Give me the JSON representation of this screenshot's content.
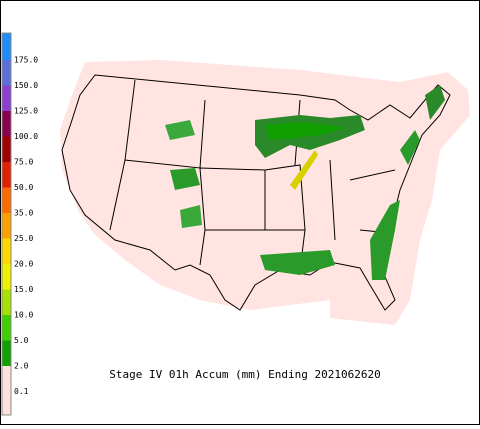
{
  "title": "Stage IV 01h Accum (mm) Ending 2021062620",
  "legend": [
    {
      "label": "175.0",
      "color": "#1e8cff"
    },
    {
      "label": "150.0",
      "color": "#5a6fd8"
    },
    {
      "label": "125.0",
      "color": "#8a3fd0"
    },
    {
      "label": "100.0",
      "color": "#8a0050"
    },
    {
      "label": "75.0",
      "color": "#a00000"
    },
    {
      "label": "50.0",
      "color": "#e02000"
    },
    {
      "label": "35.0",
      "color": "#ff6a00"
    },
    {
      "label": "25.0",
      "color": "#ffa000"
    },
    {
      "label": "20.0",
      "color": "#ffd800"
    },
    {
      "label": "15.0",
      "color": "#f0f000"
    },
    {
      "label": "10.0",
      "color": "#a8e000"
    },
    {
      "label": "5.0",
      "color": "#40d000"
    },
    {
      "label": "2.0",
      "color": "#10a000"
    },
    {
      "label": "0.1",
      "color": "#ffe0dc"
    }
  ]
}
